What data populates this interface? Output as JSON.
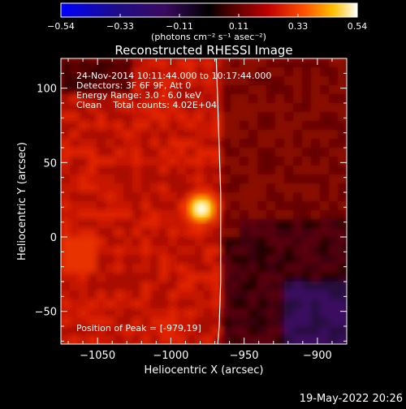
{
  "colorbar": {
    "tick_labels": [
      "−0.54",
      "−0.33",
      "−0.11",
      "0.11",
      "0.33",
      "0.54"
    ],
    "unit_label": "(photons cm⁻² s⁻¹ asec⁻²)",
    "range": [
      -0.54,
      0.54
    ]
  },
  "chart_data": {
    "type": "heatmap",
    "title": "Reconstructed RHESSI Image",
    "xlabel": "Heliocentric X (arcsec)",
    "ylabel": "Heliocentric Y (arcsec)",
    "xlim": [
      -1075,
      -880
    ],
    "ylim": [
      -72,
      120
    ],
    "x_ticks": [
      -1050,
      -1000,
      -950,
      -900
    ],
    "x_tick_labels": [
      "−1050",
      "−1000",
      "−950",
      "−900"
    ],
    "y_ticks": [
      -50,
      0,
      50,
      100
    ],
    "y_tick_labels": [
      "−50",
      "0",
      "50",
      "100"
    ],
    "info_lines": [
      "24-Nov-2014 10:11:44.000 to 10:17:44.000",
      "Detectors: 3F 6F 9F, Att 0",
      "Energy Range: 3.0 - 6.0 keV",
      "Clean    Total counts: 4.02E+04"
    ],
    "peak_label": "Position of Peak = [-979,19]",
    "peak": {
      "x": -979,
      "y": 19
    },
    "limb": [
      [
        -969,
        120
      ],
      [
        -968,
        90
      ],
      [
        -967,
        60
      ],
      [
        -966,
        30
      ],
      [
        -966,
        0
      ],
      [
        -966,
        -30
      ],
      [
        -967,
        -60
      ],
      [
        -968,
        -72
      ]
    ]
  },
  "footer": {
    "date": "19-May-2022 20:26"
  }
}
